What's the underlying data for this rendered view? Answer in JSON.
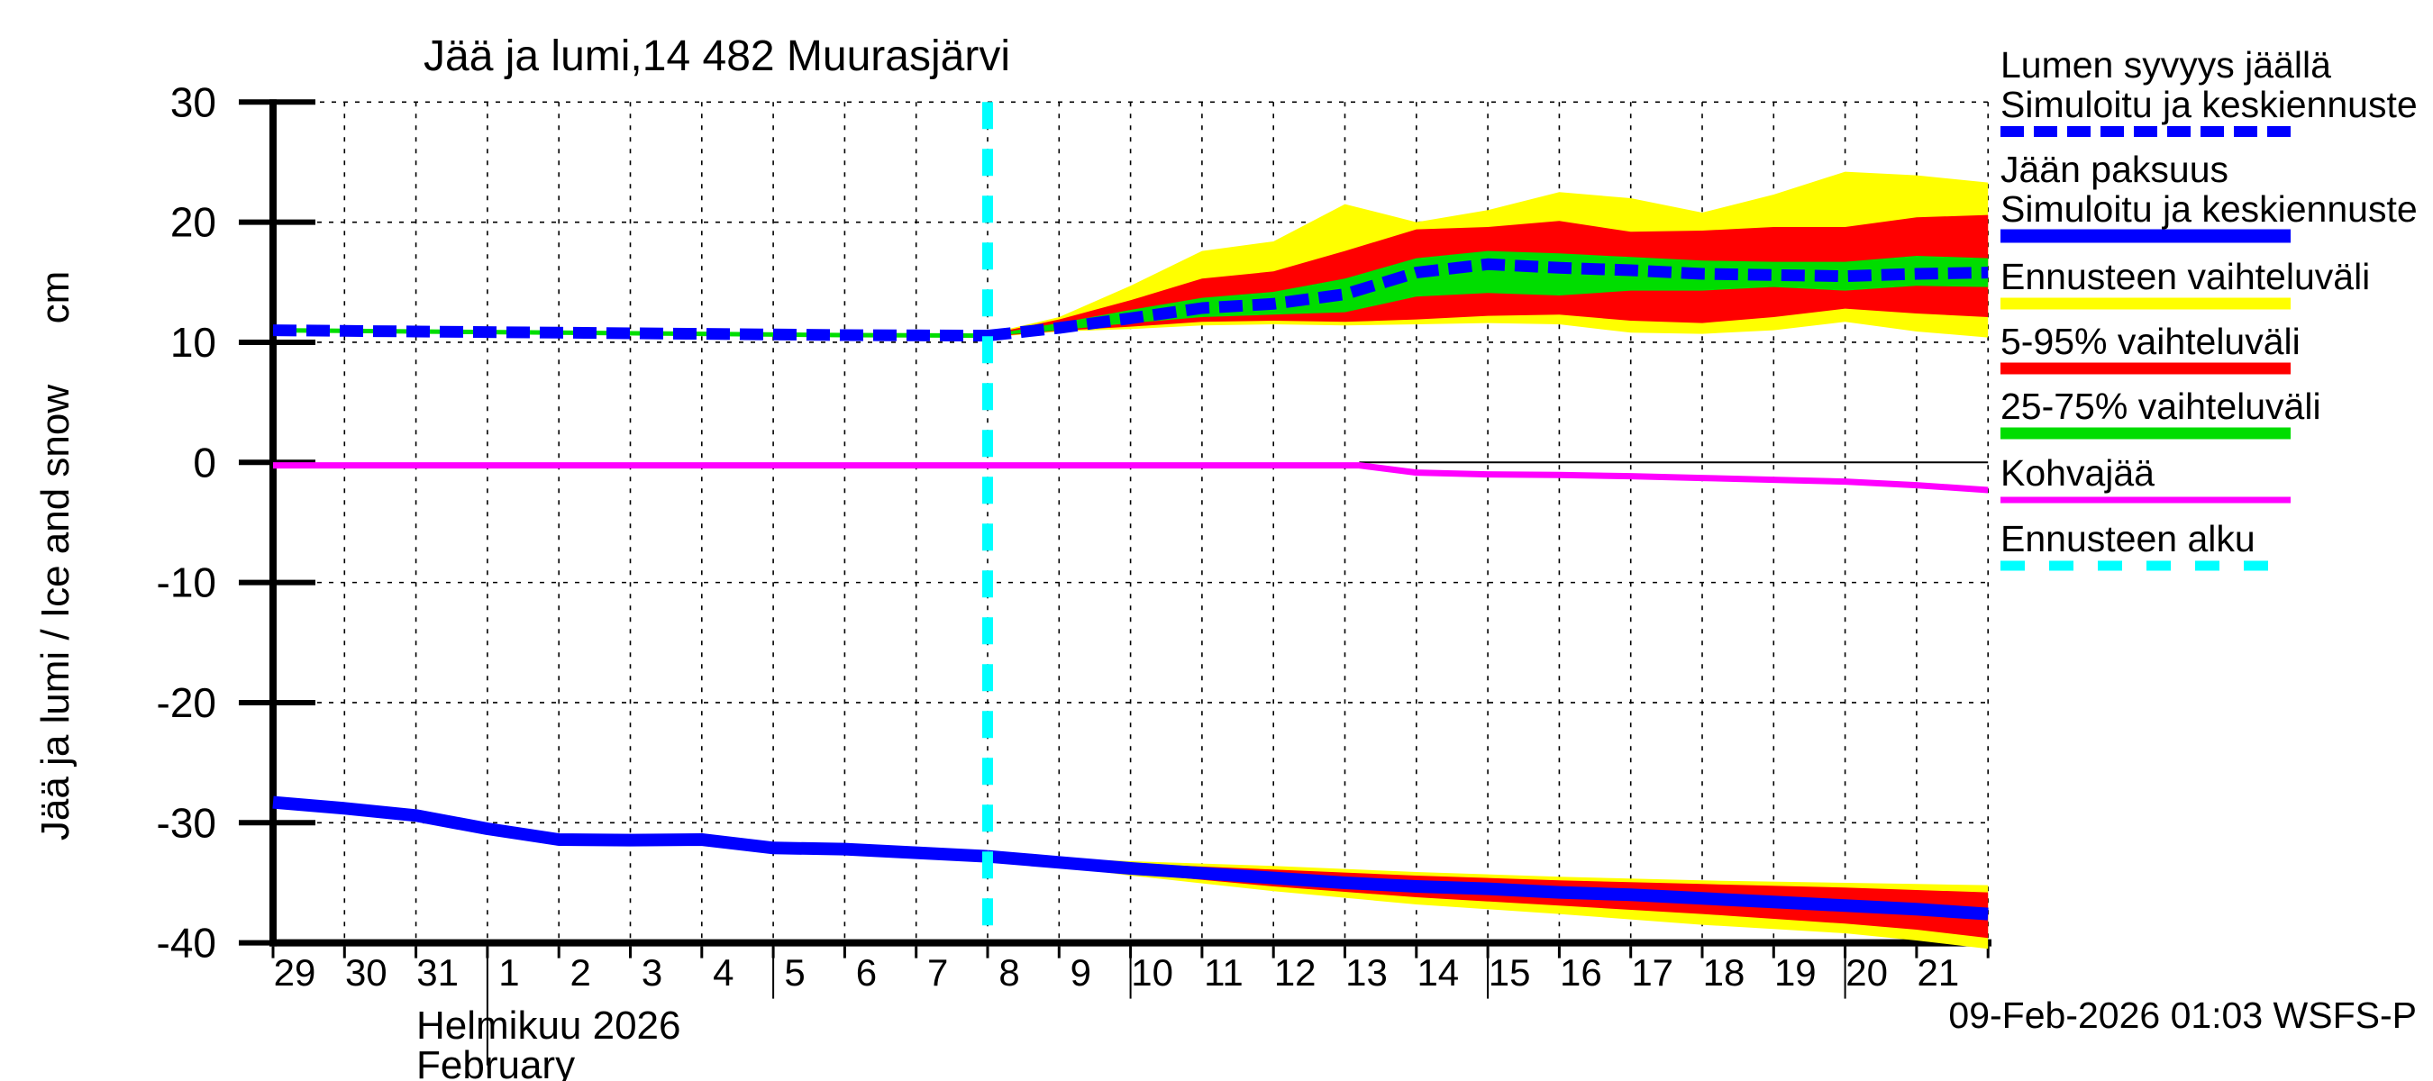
{
  "title": "Jää ja lumi,14 482 Muurasjärvi",
  "y_axis": {
    "label": "Jää ja lumi / Ice and snow",
    "unit": "cm",
    "tick_labels": [
      "30",
      "20",
      "10",
      "0",
      "-10",
      "-20",
      "-30",
      "-40"
    ],
    "tick_values": [
      30,
      20,
      10,
      0,
      -10,
      -20,
      -30,
      -40
    ]
  },
  "x_axis": {
    "day_labels": [
      "29",
      "30",
      "31",
      "1",
      "2",
      "3",
      "4",
      "5",
      "6",
      "7",
      "8",
      "9",
      "10",
      "11",
      "12",
      "13",
      "14",
      "15",
      "16",
      "17",
      "18",
      "19",
      "20",
      "21"
    ],
    "month_label_fi": "Helmikuu  2026",
    "month_label_en": "February",
    "month_boundary_index": 3,
    "five_day_marker_indices": [
      7,
      12,
      17,
      22
    ]
  },
  "footer": {
    "timestamp": "09-Feb-2026 01:03 WSFS-P"
  },
  "colors": {
    "blue": "#0000ff",
    "yellow": "#ffff00",
    "red": "#ff0000",
    "green": "#00dd00",
    "magenta": "#ff00ff",
    "cyan": "#00ffff",
    "axis": "#000000"
  },
  "legend": [
    {
      "lines": [
        "Lumen syvyys jäällä",
        "Simuloitu ja keskiennuste"
      ],
      "color": "#0000ff",
      "style": "dashed",
      "thickness": 12
    },
    {
      "lines": [
        "Jään paksuus",
        "Simuloitu ja keskiennuste"
      ],
      "color": "#0000ff",
      "style": "solid",
      "thickness": 15
    },
    {
      "lines": [
        "Ennusteen vaihteluväli"
      ],
      "color": "#ffff00",
      "style": "solid",
      "thickness": 13
    },
    {
      "lines": [
        "5-95% vaihteluväli"
      ],
      "color": "#ff0000",
      "style": "solid",
      "thickness": 13
    },
    {
      "lines": [
        "25-75% vaihteluväli"
      ],
      "color": "#00dd00",
      "style": "solid",
      "thickness": 13
    },
    {
      "lines": [
        "Kohvajää"
      ],
      "color": "#ff00ff",
      "style": "solid",
      "thickness": 7
    },
    {
      "lines": [
        "Ennusteen alku"
      ],
      "color": "#00ffff",
      "style": "dashed-sparse",
      "thickness": 11
    }
  ],
  "chart_data": {
    "type": "line",
    "title": "Jää ja lumi,14 482 Muurasjärvi",
    "xlabel": "Helmikuu 2026 / February",
    "ylabel": "Jää ja lumi / Ice and snow (cm)",
    "x_unit": "days since 29-Jan-2026 00:00",
    "xlim": [
      0,
      24
    ],
    "ylim": [
      -40,
      30
    ],
    "grid": true,
    "forecast_start_x": 10,
    "series": [
      {
        "name": "snow_band_minmax_forecast",
        "legend": "Ennusteen vaihteluväli",
        "type": "band",
        "color": "#ffff00",
        "upper": [
          [
            10,
            10.7
          ],
          [
            11,
            12.1
          ],
          [
            12,
            14.7
          ],
          [
            13,
            17.6
          ],
          [
            14,
            18.4
          ],
          [
            15,
            21.5
          ],
          [
            16,
            20.0
          ],
          [
            17,
            21.0
          ],
          [
            18,
            22.5
          ],
          [
            19,
            22.0
          ],
          [
            20,
            20.8
          ],
          [
            21,
            22.3
          ],
          [
            22,
            24.2
          ],
          [
            23,
            23.9
          ],
          [
            24,
            23.3
          ]
        ],
        "lower": [
          [
            10,
            10.4
          ],
          [
            11,
            10.9
          ],
          [
            12,
            11.1
          ],
          [
            13,
            11.4
          ],
          [
            14,
            11.5
          ],
          [
            15,
            11.4
          ],
          [
            16,
            11.5
          ],
          [
            17,
            11.6
          ],
          [
            18,
            11.5
          ],
          [
            19,
            10.8
          ],
          [
            20,
            10.7
          ],
          [
            21,
            11.0
          ],
          [
            22,
            11.7
          ],
          [
            23,
            10.9
          ],
          [
            24,
            10.4
          ]
        ]
      },
      {
        "name": "snow_band_5_95_forecast",
        "legend": "5-95% vaihteluväli",
        "type": "band",
        "color": "#ff0000",
        "upper": [
          [
            10,
            10.65
          ],
          [
            11,
            11.9
          ],
          [
            12,
            13.5
          ],
          [
            13,
            15.3
          ],
          [
            14,
            15.9
          ],
          [
            15,
            17.6
          ],
          [
            16,
            19.4
          ],
          [
            17,
            19.6
          ],
          [
            18,
            20.1
          ],
          [
            19,
            19.2
          ],
          [
            20,
            19.3
          ],
          [
            21,
            19.6
          ],
          [
            22,
            19.6
          ],
          [
            23,
            20.4
          ],
          [
            24,
            20.6
          ]
        ],
        "lower": [
          [
            10,
            10.45
          ],
          [
            11,
            10.95
          ],
          [
            12,
            11.3
          ],
          [
            13,
            11.7
          ],
          [
            14,
            11.8
          ],
          [
            15,
            11.7
          ],
          [
            16,
            11.9
          ],
          [
            17,
            12.2
          ],
          [
            18,
            12.3
          ],
          [
            19,
            11.8
          ],
          [
            20,
            11.6
          ],
          [
            21,
            12.1
          ],
          [
            22,
            12.8
          ],
          [
            23,
            12.4
          ],
          [
            24,
            12.1
          ]
        ]
      },
      {
        "name": "snow_band_25_75_forecast",
        "legend": "25-75% vaihteluväli",
        "type": "band",
        "color": "#00dd00",
        "upper": [
          [
            10,
            10.6
          ],
          [
            11,
            11.6
          ],
          [
            12,
            12.7
          ],
          [
            13,
            13.7
          ],
          [
            14,
            14.2
          ],
          [
            15,
            15.3
          ],
          [
            16,
            17.0
          ],
          [
            17,
            17.6
          ],
          [
            18,
            17.4
          ],
          [
            19,
            17.1
          ],
          [
            20,
            16.8
          ],
          [
            21,
            16.7
          ],
          [
            22,
            16.7
          ],
          [
            23,
            17.2
          ],
          [
            24,
            17.0
          ]
        ],
        "lower": [
          [
            10,
            10.5
          ],
          [
            11,
            11.0
          ],
          [
            12,
            11.6
          ],
          [
            13,
            12.1
          ],
          [
            14,
            12.3
          ],
          [
            15,
            12.5
          ],
          [
            16,
            13.8
          ],
          [
            17,
            14.1
          ],
          [
            18,
            13.9
          ],
          [
            19,
            14.3
          ],
          [
            20,
            14.3
          ],
          [
            21,
            14.6
          ],
          [
            22,
            14.3
          ],
          [
            23,
            14.7
          ],
          [
            24,
            14.6
          ]
        ]
      },
      {
        "name": "ice_band_minmax_forecast",
        "legend": "Ennusteen vaihteluväli",
        "type": "band",
        "color": "#ffff00",
        "upper": [
          [
            10,
            -32.7
          ],
          [
            12,
            -33.2
          ],
          [
            14,
            -33.6
          ],
          [
            16,
            -34.1
          ],
          [
            18,
            -34.5
          ],
          [
            20,
            -34.8
          ],
          [
            22,
            -35.0
          ],
          [
            23,
            -35.1
          ],
          [
            24,
            -35.2
          ]
        ],
        "lower": [
          [
            10,
            -32.9
          ],
          [
            12,
            -34.4
          ],
          [
            14,
            -35.7
          ],
          [
            16,
            -36.8
          ],
          [
            18,
            -37.6
          ],
          [
            20,
            -38.5
          ],
          [
            22,
            -39.2
          ],
          [
            23,
            -39.8
          ],
          [
            24,
            -40.5
          ]
        ]
      },
      {
        "name": "ice_band_5_95_forecast",
        "legend": "5-95% vaihteluväli",
        "type": "band",
        "color": "#ff0000",
        "upper": [
          [
            10,
            -32.75
          ],
          [
            12,
            -33.4
          ],
          [
            14,
            -33.9
          ],
          [
            16,
            -34.4
          ],
          [
            18,
            -34.8
          ],
          [
            20,
            -35.1
          ],
          [
            22,
            -35.4
          ],
          [
            23,
            -35.6
          ],
          [
            24,
            -35.8
          ]
        ],
        "lower": [
          [
            10,
            -32.85
          ],
          [
            12,
            -34.2
          ],
          [
            14,
            -35.3
          ],
          [
            16,
            -36.2
          ],
          [
            18,
            -36.9
          ],
          [
            20,
            -37.6
          ],
          [
            22,
            -38.4
          ],
          [
            23,
            -38.9
          ],
          [
            24,
            -39.6
          ]
        ]
      },
      {
        "name": "ice_thickness_history",
        "legend": "Jään paksuus Simuloitu",
        "type": "line",
        "color": "#0000ff",
        "style": "solid",
        "width": 14,
        "points": [
          [
            0,
            -28.3
          ],
          [
            1,
            -28.8
          ],
          [
            2,
            -29.4
          ],
          [
            3,
            -30.5
          ],
          [
            4,
            -31.4
          ],
          [
            5,
            -31.45
          ],
          [
            6,
            -31.4
          ],
          [
            7,
            -32.1
          ],
          [
            8,
            -32.2
          ],
          [
            9,
            -32.5
          ],
          [
            10,
            -32.8
          ]
        ]
      },
      {
        "name": "ice_thickness_median_forecast",
        "legend": "Jään paksuus keskiennuste",
        "type": "line",
        "color": "#0000ff",
        "style": "solid",
        "width": 14,
        "points": [
          [
            10,
            -32.8
          ],
          [
            11,
            -33.3
          ],
          [
            12,
            -33.8
          ],
          [
            13,
            -34.2
          ],
          [
            14,
            -34.6
          ],
          [
            15,
            -35.0
          ],
          [
            16,
            -35.3
          ],
          [
            17,
            -35.5
          ],
          [
            18,
            -35.8
          ],
          [
            19,
            -36.0
          ],
          [
            20,
            -36.3
          ],
          [
            21,
            -36.6
          ],
          [
            22,
            -36.9
          ],
          [
            23,
            -37.2
          ],
          [
            24,
            -37.6
          ]
        ]
      },
      {
        "name": "snow_depth_history_underlay",
        "legend": "25-75% vaihteluväli (collapsed)",
        "type": "line",
        "color": "#00dd00",
        "style": "solid",
        "width": 5,
        "points": [
          [
            0,
            11.0
          ],
          [
            2,
            10.9
          ],
          [
            4,
            10.8
          ],
          [
            6,
            10.7
          ],
          [
            8,
            10.6
          ],
          [
            10,
            10.55
          ]
        ]
      },
      {
        "name": "snow_depth_history",
        "legend": "Lumen syvyys jäällä Simuloitu",
        "type": "line",
        "color": "#0000ff",
        "style": "dashed",
        "width": 13,
        "points": [
          [
            0,
            11.0
          ],
          [
            2,
            10.9
          ],
          [
            4,
            10.8
          ],
          [
            6,
            10.7
          ],
          [
            8,
            10.6
          ],
          [
            10,
            10.55
          ]
        ]
      },
      {
        "name": "snow_depth_median_forecast",
        "legend": "Lumen syvyys jäällä keskiennuste",
        "type": "line",
        "color": "#0000ff",
        "style": "dashed",
        "width": 13,
        "points": [
          [
            10,
            10.55
          ],
          [
            11,
            11.2
          ],
          [
            12,
            12.0
          ],
          [
            13,
            12.85
          ],
          [
            14,
            13.2
          ],
          [
            15,
            14.0
          ],
          [
            16,
            15.8
          ],
          [
            17,
            16.5
          ],
          [
            18,
            16.2
          ],
          [
            19,
            16.0
          ],
          [
            20,
            15.7
          ],
          [
            21,
            15.6
          ],
          [
            22,
            15.5
          ],
          [
            23,
            15.7
          ],
          [
            24,
            15.8
          ]
        ]
      },
      {
        "name": "zero_reference_line",
        "legend": "",
        "type": "line",
        "color": "#000000",
        "style": "solid",
        "width": 2,
        "points": [
          [
            15.2,
            0
          ],
          [
            24,
            0
          ]
        ]
      },
      {
        "name": "kohvajaa",
        "legend": "Kohvajää",
        "type": "line",
        "color": "#ff00ff",
        "style": "solid",
        "width": 7,
        "points": [
          [
            0,
            -0.25
          ],
          [
            15.2,
            -0.25
          ],
          [
            16,
            -0.85
          ],
          [
            17,
            -1.0
          ],
          [
            18,
            -1.05
          ],
          [
            19,
            -1.15
          ],
          [
            20,
            -1.3
          ],
          [
            21,
            -1.45
          ],
          [
            22,
            -1.6
          ],
          [
            23,
            -1.9
          ],
          [
            24,
            -2.3
          ]
        ]
      },
      {
        "name": "forecast_start",
        "legend": "Ennusteen alku",
        "type": "vline",
        "color": "#00ffff",
        "x": 10,
        "width": 12
      }
    ]
  }
}
